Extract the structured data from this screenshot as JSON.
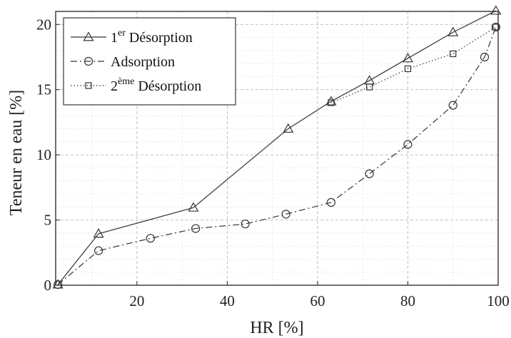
{
  "chart_data": {
    "type": "line",
    "xlabel": "HR [%]",
    "ylabel": "Teneur en eau [%]",
    "xlim": [
      2,
      100
    ],
    "ylim": [
      0,
      21
    ],
    "xticks": [
      20,
      40,
      60,
      80,
      100
    ],
    "yticks": [
      0,
      5,
      10,
      15,
      20
    ],
    "grid": true,
    "legend_position": "top-left",
    "series": [
      {
        "name_base": "1",
        "name_sup": "er",
        "name_rest": " Désorption",
        "line_style": "solid",
        "marker": "triangle",
        "x": [
          2.5,
          11.5,
          32.5,
          53.5,
          63,
          71.5,
          80,
          90,
          99.5
        ],
        "y": [
          0.05,
          3.95,
          5.95,
          12.0,
          14.1,
          15.7,
          17.4,
          19.4,
          21.05
        ]
      },
      {
        "name_base": "",
        "name_sup": "",
        "name_rest": "Adsorption",
        "line_style": "dashdot",
        "marker": "circle",
        "x": [
          2.5,
          11.5,
          23,
          33,
          44,
          53,
          63,
          71.5,
          80,
          90,
          97,
          99.5
        ],
        "y": [
          0.05,
          2.65,
          3.6,
          4.35,
          4.7,
          5.45,
          6.35,
          8.55,
          10.8,
          13.8,
          17.5,
          19.8
        ]
      },
      {
        "name_base": "2",
        "name_sup": "ème",
        "name_rest": " Désorption",
        "line_style": "dotted",
        "marker": "square",
        "x": [
          63,
          71.5,
          80,
          90,
          99.5
        ],
        "y": [
          14.0,
          15.2,
          16.6,
          17.75,
          19.8
        ]
      }
    ]
  }
}
